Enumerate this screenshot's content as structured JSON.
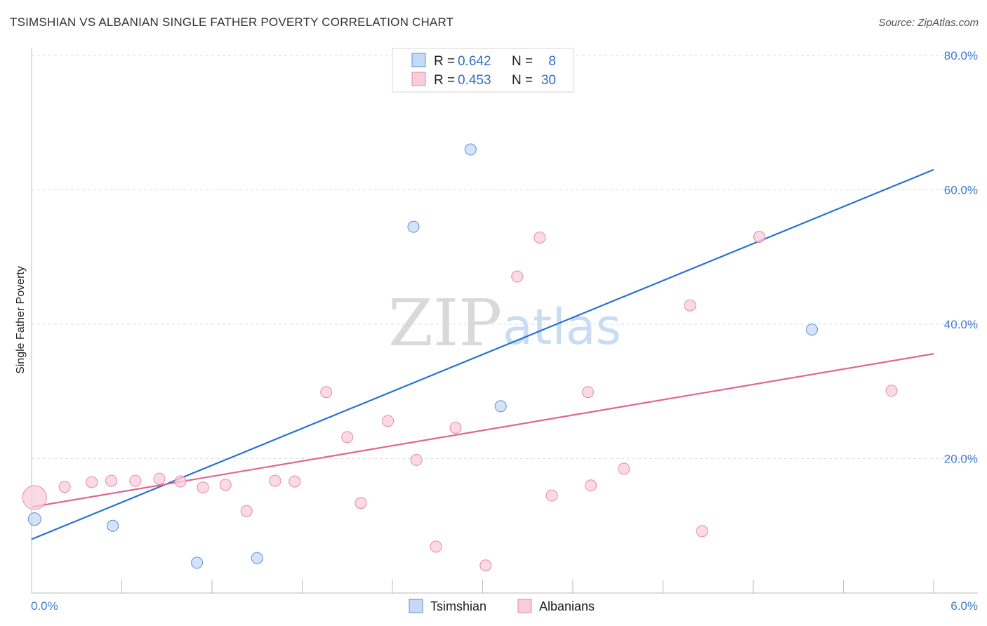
{
  "title": "TSIMSHIAN VS ALBANIAN SINGLE FATHER POVERTY CORRELATION CHART",
  "source": "Source: ZipAtlas.com",
  "watermark": {
    "zip": "ZIP",
    "atlas": "atlas"
  },
  "chart_data": {
    "type": "scatter",
    "xlabel": "",
    "ylabel": "Single Father Poverty",
    "xlim": [
      0.0,
      6.0
    ],
    "ylim": [
      0.0,
      80.0
    ],
    "x_tick_labels": [
      "0.0%",
      "6.0%"
    ],
    "y_ticks": [
      20,
      40,
      60,
      80
    ],
    "y_tick_labels": [
      "20.0%",
      "40.0%",
      "60.0%",
      "80.0%"
    ],
    "grid": "horizontal dashed",
    "legend_position": "top-center",
    "series": [
      {
        "name": "Tsimshian",
        "color": "#5b8fd9",
        "fill": "#c5daf6",
        "R": "0.642",
        "N": "8",
        "trend": {
          "x": [
            0.0,
            6.0
          ],
          "y": [
            8.0,
            63.0
          ],
          "color": "#2a72d0"
        },
        "points": [
          {
            "x": 0.02,
            "y": 11.0,
            "big": true
          },
          {
            "x": 0.54,
            "y": 10.0
          },
          {
            "x": 1.1,
            "y": 4.5
          },
          {
            "x": 1.5,
            "y": 5.2
          },
          {
            "x": 2.54,
            "y": 54.5
          },
          {
            "x": 2.92,
            "y": 66.0
          },
          {
            "x": 3.12,
            "y": 27.8
          },
          {
            "x": 5.19,
            "y": 39.2
          }
        ]
      },
      {
        "name": "Albanians",
        "color": "#e589a9",
        "fill": "#f9ccdc",
        "R": "0.453",
        "N": "30",
        "trend": {
          "x": [
            0.0,
            6.0
          ],
          "y": [
            12.8,
            35.6
          ],
          "color": "#e0668f"
        },
        "points": [
          {
            "x": 0.02,
            "y": 14.2,
            "big": true
          },
          {
            "x": 0.22,
            "y": 15.8
          },
          {
            "x": 0.4,
            "y": 16.5
          },
          {
            "x": 0.53,
            "y": 16.7
          },
          {
            "x": 0.69,
            "y": 16.7
          },
          {
            "x": 0.85,
            "y": 17.0
          },
          {
            "x": 0.99,
            "y": 16.6
          },
          {
            "x": 1.14,
            "y": 15.7
          },
          {
            "x": 1.29,
            "y": 16.1
          },
          {
            "x": 1.43,
            "y": 12.2
          },
          {
            "x": 1.62,
            "y": 16.7
          },
          {
            "x": 1.75,
            "y": 16.6
          },
          {
            "x": 1.96,
            "y": 29.9
          },
          {
            "x": 2.1,
            "y": 23.2
          },
          {
            "x": 2.19,
            "y": 13.4
          },
          {
            "x": 2.37,
            "y": 25.6
          },
          {
            "x": 2.56,
            "y": 19.8
          },
          {
            "x": 2.69,
            "y": 6.9
          },
          {
            "x": 2.82,
            "y": 24.6
          },
          {
            "x": 3.02,
            "y": 4.1
          },
          {
            "x": 3.23,
            "y": 47.1
          },
          {
            "x": 3.38,
            "y": 52.9
          },
          {
            "x": 3.46,
            "y": 14.5
          },
          {
            "x": 3.7,
            "y": 29.9
          },
          {
            "x": 3.72,
            "y": 16.0
          },
          {
            "x": 3.94,
            "y": 18.5
          },
          {
            "x": 4.38,
            "y": 42.8
          },
          {
            "x": 4.46,
            "y": 9.2
          },
          {
            "x": 4.84,
            "y": 53.0
          },
          {
            "x": 5.72,
            "y": 30.1
          }
        ]
      }
    ]
  }
}
